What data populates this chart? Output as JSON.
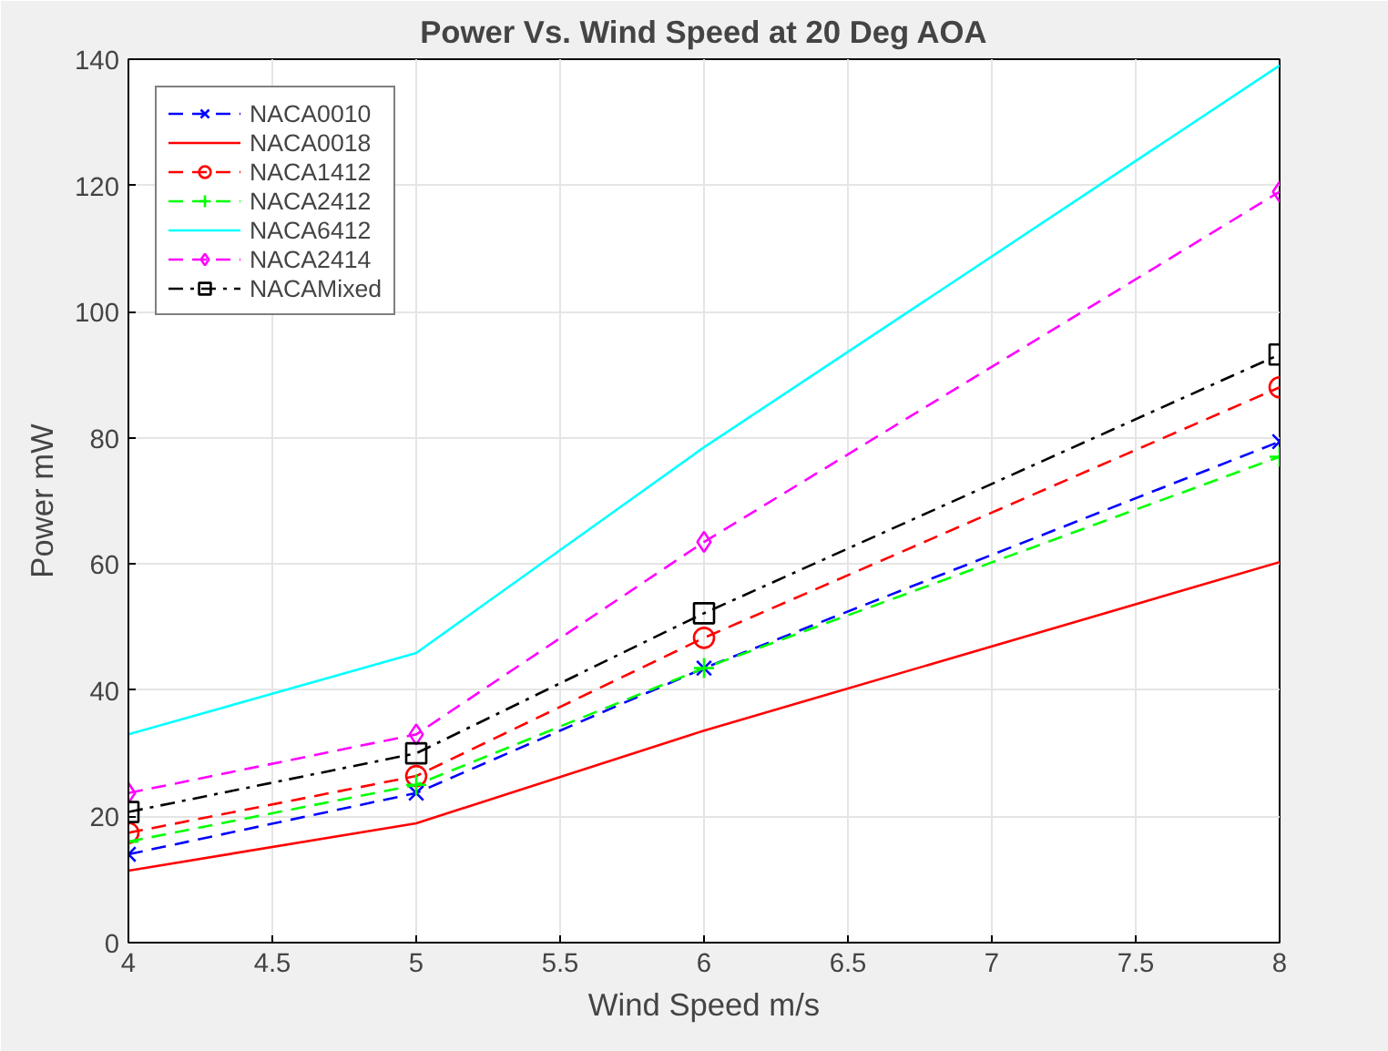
{
  "chart_data": {
    "type": "line",
    "title": "Power Vs. Wind Speed at 20 Deg AOA",
    "xlabel": "Wind Speed m/s",
    "ylabel": "Power mW",
    "x": [
      4,
      5,
      6,
      8
    ],
    "xlim": [
      4,
      8
    ],
    "xticks": [
      4,
      4.5,
      5,
      5.5,
      6,
      6.5,
      7,
      7.5,
      8
    ],
    "ylim": [
      0,
      140
    ],
    "yticks": [
      0,
      20,
      40,
      60,
      80,
      100,
      120,
      140
    ],
    "grid": true,
    "legend": "top left",
    "series": [
      {
        "name": "NACA0010",
        "color": "#0000ff",
        "marker": "cross",
        "line_style": "dashed",
        "values": [
          14,
          23.7,
          43.5,
          79.4
        ]
      },
      {
        "name": "NACA0018",
        "color": "#ff0000",
        "marker": "none",
        "line_style": "solid",
        "values": [
          11.4,
          18.9,
          33.6,
          60.3
        ]
      },
      {
        "name": "NACA1412",
        "color": "#ff0000",
        "marker": "circle",
        "line_style": "dashed",
        "values": [
          17.4,
          26.4,
          48.3,
          88
        ]
      },
      {
        "name": "NACA2412",
        "color": "#00ff00",
        "marker": "plus",
        "line_style": "dashed",
        "values": [
          16,
          25,
          43.5,
          77
        ]
      },
      {
        "name": "NACA6412",
        "color": "#00ffff",
        "marker": "none",
        "line_style": "solid",
        "values": [
          33,
          45.9,
          78.5,
          139
        ]
      },
      {
        "name": "NACA2414",
        "color": "#ff00ff",
        "marker": "diamond",
        "line_style": "dashed",
        "values": [
          23.7,
          33,
          63.5,
          119
        ]
      },
      {
        "name": "NACAMixed",
        "color": "#000000",
        "marker": "square",
        "line_style": "dashdot",
        "values": [
          20.7,
          30,
          52.2,
          93.2
        ]
      }
    ]
  }
}
